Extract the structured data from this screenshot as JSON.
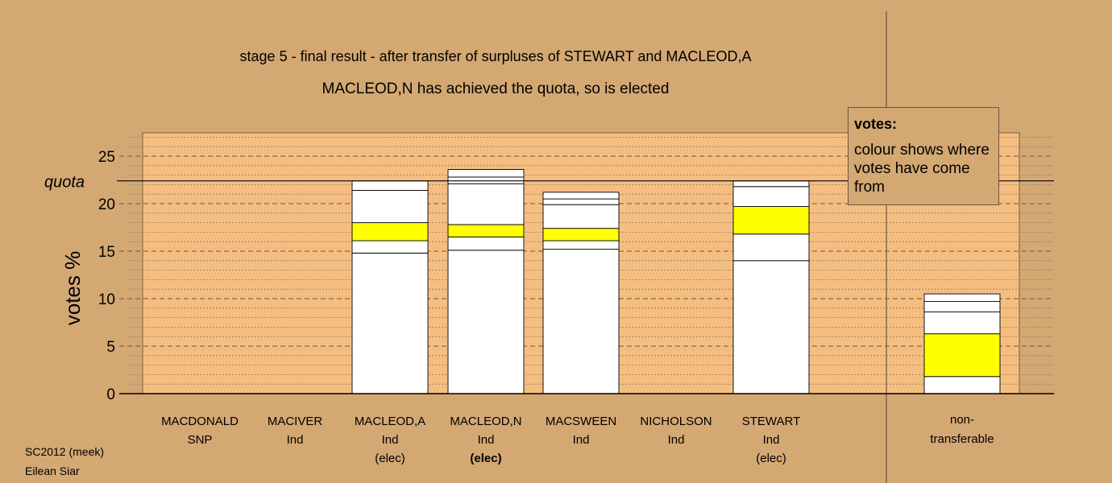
{
  "chart_data": {
    "type": "bar",
    "stacked": true,
    "title": "stage 5 - final result - after transfer of surpluses of STEWART and MACLEOD,A",
    "subtitle": "MACLEOD,N has achieved the quota, so is elected",
    "ylabel": "votes %",
    "xlabel": "",
    "ylim": [
      0,
      27.5
    ],
    "yticks": [
      0,
      5,
      10,
      15,
      20,
      25
    ],
    "quota": 22.4,
    "quota_label": "quota",
    "grid": "horizontal dotted every 1, dashed every 5",
    "categories": [
      {
        "name": "MACDONALD",
        "party": "SNP",
        "status": ""
      },
      {
        "name": "MACIVER",
        "party": "Ind",
        "status": ""
      },
      {
        "name": "MACLEOD,A",
        "party": "Ind",
        "status": "(elec)"
      },
      {
        "name": "MACLEOD,N",
        "party": "Ind",
        "status": "(elec)"
      },
      {
        "name": "MACSWEEN",
        "party": "Ind",
        "status": ""
      },
      {
        "name": "NICHOLSON",
        "party": "Ind",
        "status": ""
      },
      {
        "name": "STEWART",
        "party": "Ind",
        "status": "(elec)"
      },
      {
        "name": "non-",
        "party": "transferable",
        "status": ""
      }
    ],
    "stacks": [
      [],
      [],
      [
        {
          "value": 14.8,
          "color": "#ffffff"
        },
        {
          "value": 1.3,
          "color": "#ffffff"
        },
        {
          "value": 1.9,
          "color": "#ffff00"
        },
        {
          "value": 3.4,
          "color": "#ffffff"
        },
        {
          "value": 1.0,
          "color": "#ffffff"
        }
      ],
      [
        {
          "value": 15.1,
          "color": "#ffffff"
        },
        {
          "value": 1.4,
          "color": "#ffffff"
        },
        {
          "value": 1.3,
          "color": "#ffff00"
        },
        {
          "value": 4.3,
          "color": "#ffffff"
        },
        {
          "value": 0.7,
          "color": "#ffffff"
        },
        {
          "value": 0.8,
          "color": "#ffffff"
        }
      ],
      [
        {
          "value": 15.2,
          "color": "#ffffff"
        },
        {
          "value": 0.9,
          "color": "#ffffff"
        },
        {
          "value": 1.3,
          "color": "#ffff00"
        },
        {
          "value": 2.5,
          "color": "#ffffff"
        },
        {
          "value": 0.6,
          "color": "#ffffff"
        },
        {
          "value": 0.7,
          "color": "#ffffff"
        }
      ],
      [],
      [
        {
          "value": 14.0,
          "color": "#ffffff"
        },
        {
          "value": 2.8,
          "color": "#ffffff"
        },
        {
          "value": 2.9,
          "color": "#ffff00"
        },
        {
          "value": 2.1,
          "color": "#ffffff"
        },
        {
          "value": 0.6,
          "color": "#ffffff"
        }
      ],
      [
        {
          "value": 1.8,
          "color": "#ffffff"
        },
        {
          "value": 4.5,
          "color": "#ffff00"
        },
        {
          "value": 2.3,
          "color": "#ffffff"
        },
        {
          "value": 1.1,
          "color": "#ffffff"
        },
        {
          "value": 0.8,
          "color": "#ffffff"
        }
      ]
    ],
    "colors": {
      "background": "#d4a873",
      "plot": "#f5be81",
      "segment": "#ffffff",
      "highlight": "#ffff00"
    }
  },
  "legend": {
    "title": "votes:",
    "body": "colour shows where votes have come from"
  },
  "footer": {
    "line1": "SC2012 (meek)",
    "line2": "Eilean Siar"
  }
}
